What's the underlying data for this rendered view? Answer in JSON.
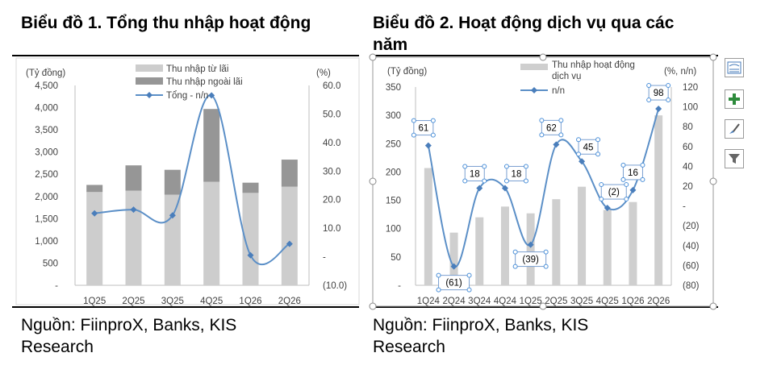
{
  "chart1_title": "Biểu đồ 1. Tổng thu nhập hoạt động",
  "chart2_title": "Biểu đồ 2. Hoạt động dịch vụ qua các năm",
  "source1": "Nguồn: FiinproX, Banks, KIS Research",
  "source2": "Nguồn: FiinproX, Banks, KIS Research",
  "colors": {
    "bar_light": "#cdcdcd",
    "bar_dark": "#969696",
    "line": "#5b8fc7",
    "marker": "#4a7ebb",
    "bar2": "#cfcfcf"
  },
  "side_tools": [
    {
      "name": "chart-layout-icon",
      "interactable": true
    },
    {
      "name": "chart-elements-icon",
      "interactable": true
    },
    {
      "name": "chart-styles-icon",
      "interactable": true
    },
    {
      "name": "chart-filters-icon",
      "interactable": true
    }
  ],
  "chart_data": [
    {
      "type": "bar",
      "stacked": true,
      "title": "Biểu đồ 1. Tổng thu nhập hoạt động",
      "ylabel": "(Tỷ đồng)",
      "y2label": "(%)",
      "ylim": [
        0,
        4500
      ],
      "y2lim": [
        -10,
        60
      ],
      "yticks": [
        "-",
        "500",
        "1,000",
        "1,500",
        "2,000",
        "2,500",
        "3,000",
        "3,500",
        "4,000",
        "4,500"
      ],
      "y2ticks": [
        "(10.0)",
        "-",
        "10.0",
        "20.0",
        "30.0",
        "40.0",
        "50.0",
        "60.0"
      ],
      "categories": [
        "1Q25",
        "2Q25",
        "3Q25",
        "4Q25",
        "1Q26",
        "2Q26"
      ],
      "series": [
        {
          "name": "Thu nhập từ lãi",
          "kind": "bar",
          "values": [
            2100,
            2130,
            2040,
            2330,
            2080,
            2220
          ]
        },
        {
          "name": "Thu nhập ngoài lãi",
          "kind": "bar",
          "values": [
            160,
            570,
            560,
            1640,
            230,
            610
          ]
        },
        {
          "name": "Tổng - n/n",
          "kind": "line",
          "axis": "secondary",
          "values": [
            15.2,
            16.5,
            14.5,
            56.5,
            0.5,
            4.5
          ]
        }
      ],
      "legend": "top"
    },
    {
      "type": "bar",
      "title": "Biểu đồ 2. Hoạt động dịch vụ qua các năm",
      "ylabel": "(Tỷ đồng)",
      "y2label": "(%, n/n)",
      "ylim": [
        0,
        350
      ],
      "y2lim": [
        -80,
        120
      ],
      "yticks": [
        "-",
        "50",
        "100",
        "150",
        "200",
        "250",
        "300",
        "350"
      ],
      "y2ticks": [
        "(80)",
        "(60)",
        "(40)",
        "(20)",
        "-",
        "20",
        "40",
        "60",
        "80",
        "100",
        "120"
      ],
      "categories": [
        "1Q24",
        "2Q24",
        "3Q24",
        "4Q24",
        "1Q25",
        "2Q25",
        "3Q25",
        "4Q25",
        "1Q26",
        "2Q26"
      ],
      "series": [
        {
          "name": "Thu nhập hoạt động dịch vụ",
          "kind": "bar",
          "values": [
            207,
            93,
            120,
            139,
            127,
            152,
            174,
            133,
            147,
            300
          ]
        },
        {
          "name": "n/n",
          "kind": "line",
          "axis": "secondary",
          "values": [
            61,
            -61,
            18,
            18,
            -39,
            62,
            45,
            -2,
            16,
            98
          ]
        }
      ],
      "data_labels": [
        "61",
        "(61)",
        "18",
        "18",
        "(39)",
        "62",
        "45",
        "(2)",
        "16",
        "98"
      ],
      "legend": "top"
    }
  ]
}
